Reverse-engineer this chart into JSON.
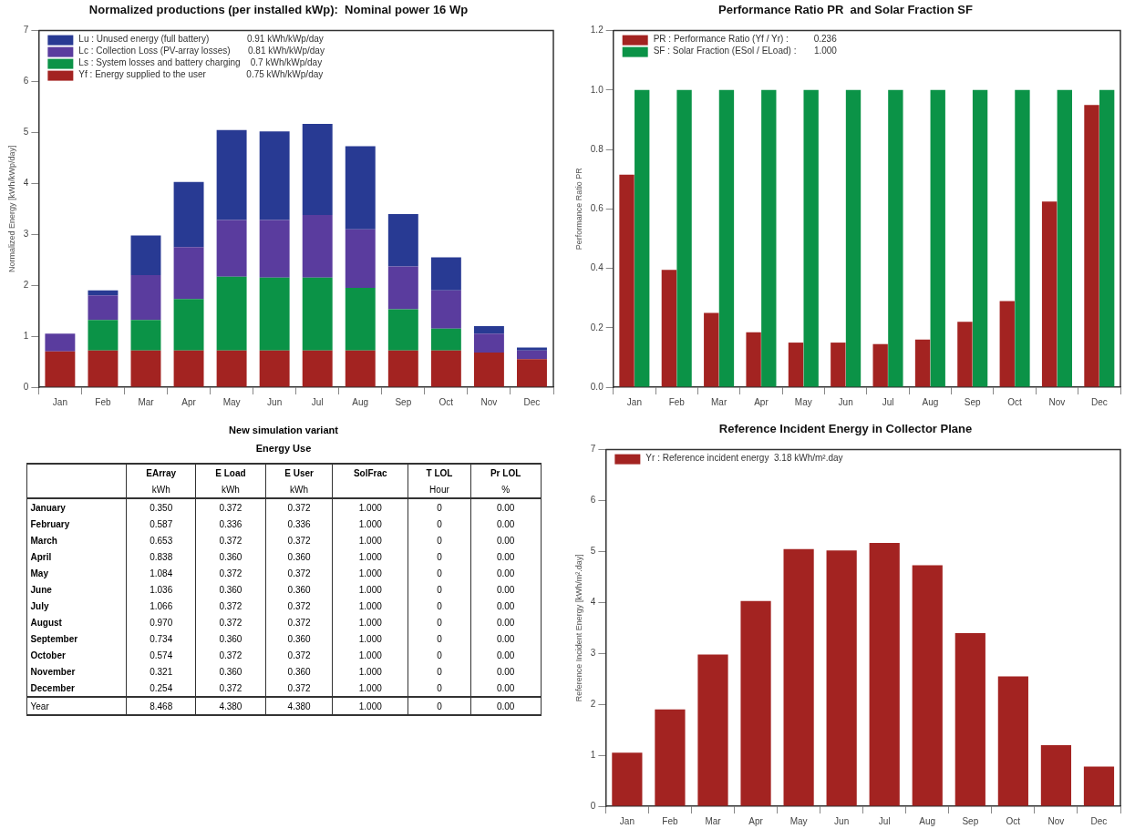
{
  "chart_data": [
    {
      "type": "bar",
      "title": "Normalized productions (per installed kWp):  Nominal power 16 Wp",
      "ylabel": "Normalized Energy [kWh/kWp/day]",
      "categories": [
        "Jan",
        "Feb",
        "Mar",
        "Apr",
        "May",
        "Jun",
        "Jul",
        "Aug",
        "Sep",
        "Oct",
        "Nov",
        "Dec"
      ],
      "stacked": true,
      "legend": "top left",
      "grid": false,
      "ylim": [
        0,
        7
      ],
      "yticks": [
        0,
        1,
        2,
        3,
        4,
        5,
        6,
        7
      ],
      "series": [
        {
          "name": "Yf : Energy supplied to the user                0.75 kWh/kWp/day",
          "color": "#a32321",
          "values": [
            0.7,
            0.72,
            0.72,
            0.72,
            0.72,
            0.72,
            0.72,
            0.72,
            0.72,
            0.72,
            0.68,
            0.55
          ]
        },
        {
          "name": "Ls : System losses and battery charging    0.7 kWh/kWp/day",
          "color": "#0b9347",
          "values": [
            0,
            0.6,
            0.6,
            1.01,
            1.45,
            1.43,
            1.43,
            1.23,
            0.81,
            0.43,
            0,
            0
          ]
        },
        {
          "name": "Lc : Collection Loss (PV-array losses)       0.81 kWh/kWp/day",
          "color": "#5a3c9e",
          "values": [
            0.35,
            0.48,
            0.88,
            1.02,
            1.11,
            1.13,
            1.23,
            1.15,
            0.84,
            0.75,
            0.37,
            0.17
          ]
        },
        {
          "name": "Lu : Unused energy (full battery)               0.91 kWh/kWp/day",
          "color": "#283a93",
          "values": [
            0,
            0.1,
            0.78,
            1.28,
            1.77,
            1.74,
            1.79,
            1.63,
            1.03,
            0.65,
            0.15,
            0.06
          ]
        }
      ]
    },
    {
      "type": "bar",
      "title": "Performance Ratio PR  and Solar Fraction SF",
      "ylabel": "Performance Ratio PR",
      "categories": [
        "Jan",
        "Feb",
        "Mar",
        "Apr",
        "May",
        "Jun",
        "Jul",
        "Aug",
        "Sep",
        "Oct",
        "Nov",
        "Dec"
      ],
      "legend": "top left",
      "grid": false,
      "ylim": [
        0,
        1.2
      ],
      "yticks": [
        {
          "value": 0,
          "label": "0.0"
        },
        0.2,
        0.4,
        0.6,
        0.8,
        {
          "value": 1,
          "label": "1.0"
        },
        1.2
      ],
      "series": [
        {
          "name": "PR : Performance Ratio (Yf / Yr) :          0.236",
          "color": "#a32321",
          "values": [
            0.715,
            0.395,
            0.25,
            0.185,
            0.15,
            0.15,
            0.145,
            0.16,
            0.22,
            0.29,
            0.625,
            0.95
          ]
        },
        {
          "name": "SF : Solar Fraction (ESol / ELoad) :       1.000",
          "color": "#0b9347",
          "values": [
            1,
            1,
            1,
            1,
            1,
            1,
            1,
            1,
            1,
            1,
            1,
            1
          ]
        }
      ]
    },
    {
      "type": "other",
      "title": "New simulation variant",
      "subtitle": "Energy Use",
      "categories": [
        "EArray",
        "E Load",
        "E User",
        "SolFrac",
        "T LOL",
        "Pr LOL"
      ],
      "y_categories": [
        null,
        "January",
        "February",
        "March",
        "April",
        "May",
        "June",
        "July",
        "August",
        "September",
        "October",
        "November",
        "December",
        "Year"
      ],
      "cell_labels": [
        [
          "kWh",
          "kWh",
          "kWh",
          null,
          "Hour",
          "%"
        ],
        [
          "0.350",
          "0.372",
          "0.372",
          "1.000",
          "0",
          "0.00"
        ],
        [
          "0.587",
          "0.336",
          "0.336",
          "1.000",
          "0",
          "0.00"
        ],
        [
          "0.653",
          "0.372",
          "0.372",
          "1.000",
          "0",
          "0.00"
        ],
        [
          "0.838",
          "0.360",
          "0.360",
          "1.000",
          "0",
          "0.00"
        ],
        [
          "1.084",
          "0.372",
          "0.372",
          "1.000",
          "0",
          "0.00"
        ],
        [
          "1.036",
          "0.360",
          "0.360",
          "1.000",
          "0",
          "0.00"
        ],
        [
          "1.066",
          "0.372",
          "0.372",
          "1.000",
          "0",
          "0.00"
        ],
        [
          "0.970",
          "0.372",
          "0.372",
          "1.000",
          "0",
          "0.00"
        ],
        [
          "0.734",
          "0.360",
          "0.360",
          "1.000",
          "0",
          "0.00"
        ],
        [
          "0.574",
          "0.372",
          "0.372",
          "1.000",
          "0",
          "0.00"
        ],
        [
          "0.321",
          "0.360",
          "0.360",
          "1.000",
          "0",
          "0.00"
        ],
        [
          "0.254",
          "0.372",
          "0.372",
          "1.000",
          "0",
          "0.00"
        ],
        [
          "8.468",
          "4.380",
          "4.380",
          "1.000",
          "0",
          "0.00"
        ]
      ]
    },
    {
      "type": "bar",
      "title": "Reference Incident Energy in Collector Plane",
      "ylabel": "Reference Incident Energy [kWh/m².day]",
      "categories": [
        "Jan",
        "Feb",
        "Mar",
        "Apr",
        "May",
        "Jun",
        "Jul",
        "Aug",
        "Sep",
        "Oct",
        "Nov",
        "Dec"
      ],
      "legend": "top left",
      "grid": false,
      "ylim": [
        0,
        7
      ],
      "yticks": [
        0,
        1,
        2,
        3,
        4,
        5,
        6,
        7
      ],
      "series": [
        {
          "name": "Yr : Reference incident energy  3.18 kWh/m².day",
          "color": "#a32321",
          "values": [
            1.05,
            1.9,
            2.98,
            4.03,
            5.05,
            5.02,
            5.17,
            4.73,
            3.4,
            2.55,
            1.2,
            0.78
          ]
        }
      ]
    }
  ]
}
